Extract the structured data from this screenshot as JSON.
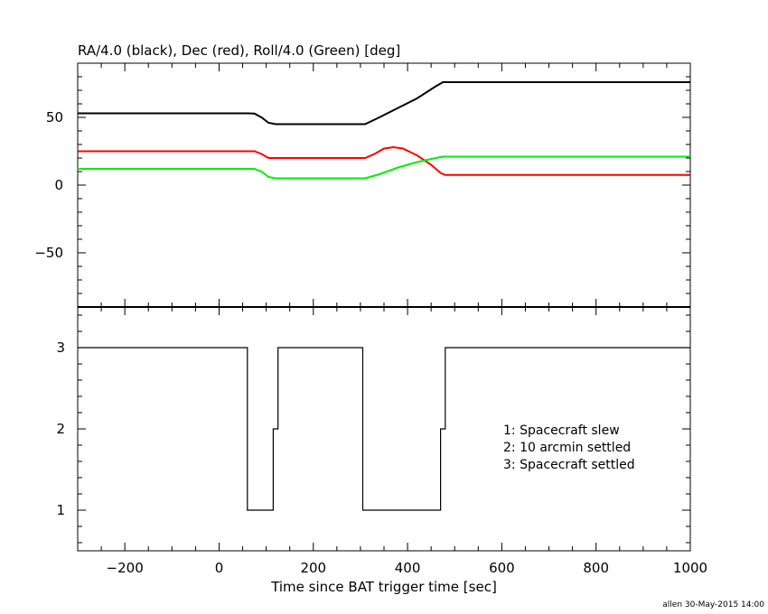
{
  "chart_data": [
    {
      "type": "line",
      "title": "RA/4.0 (black), Dec (red), Roll/4.0 (Green) [deg]",
      "xlabel": "",
      "ylabel": "",
      "xlim": [
        -300,
        1000
      ],
      "ylim": [
        -90,
        90
      ],
      "yticks": [
        -50,
        0,
        50
      ],
      "colors": {
        "RA": "#000000",
        "Dec": "#ff0000",
        "Roll": "#00ee00"
      },
      "series": [
        {
          "name": "RA/4.0",
          "color": "#000000",
          "points": [
            [
              -300,
              53
            ],
            [
              60,
              53
            ],
            [
              75,
              52.8
            ],
            [
              90,
              50
            ],
            [
              105,
              46
            ],
            [
              120,
              45
            ],
            [
              310,
              45
            ],
            [
              340,
              50
            ],
            [
              380,
              57
            ],
            [
              420,
              64
            ],
            [
              460,
              73
            ],
            [
              475,
              76
            ],
            [
              1000,
              76
            ]
          ]
        },
        {
          "name": "Dec",
          "color": "#ff0000",
          "points": [
            [
              -300,
              25
            ],
            [
              75,
              25
            ],
            [
              90,
              23
            ],
            [
              105,
              20
            ],
            [
              120,
              20
            ],
            [
              310,
              20
            ],
            [
              330,
              23
            ],
            [
              350,
              27
            ],
            [
              370,
              28
            ],
            [
              390,
              27
            ],
            [
              420,
              22
            ],
            [
              450,
              15
            ],
            [
              470,
              9
            ],
            [
              480,
              7.5
            ],
            [
              1000,
              7.5
            ]
          ]
        },
        {
          "name": "Roll/4.0",
          "color": "#00ee00",
          "points": [
            [
              -300,
              12
            ],
            [
              75,
              12
            ],
            [
              90,
              10
            ],
            [
              105,
              6
            ],
            [
              120,
              5
            ],
            [
              310,
              5
            ],
            [
              340,
              8
            ],
            [
              380,
              13
            ],
            [
              420,
              17
            ],
            [
              460,
              20
            ],
            [
              475,
              21
            ],
            [
              1000,
              21
            ]
          ]
        }
      ]
    },
    {
      "type": "line",
      "title": "",
      "xlabel": "Time since BAT trigger time [sec]",
      "ylabel": "",
      "xlim": [
        -300,
        1000
      ],
      "ylim": [
        0.5,
        3.5
      ],
      "xticks": [
        -200,
        0,
        200,
        400,
        600,
        800,
        1000
      ],
      "xtick_labels": [
        "−200",
        "0",
        "200",
        "400",
        "600",
        "800",
        "1000"
      ],
      "yticks": [
        1,
        2,
        3
      ],
      "color": "#000000",
      "points": [
        [
          -300,
          3
        ],
        [
          60,
          3
        ],
        [
          60,
          1
        ],
        [
          115,
          1
        ],
        [
          115,
          2
        ],
        [
          125,
          2
        ],
        [
          125,
          3
        ],
        [
          305,
          3
        ],
        [
          305,
          1
        ],
        [
          470,
          1
        ],
        [
          470,
          2
        ],
        [
          480,
          2
        ],
        [
          480,
          3
        ],
        [
          1000,
          3
        ]
      ],
      "legend": [
        "1: Spacecraft slew",
        "2: 10 arcmin settled",
        "3: Spacecraft settled"
      ],
      "legend_placement": "right-center"
    }
  ],
  "footer": {
    "credit": "allen 30-May-2015 14:00"
  }
}
